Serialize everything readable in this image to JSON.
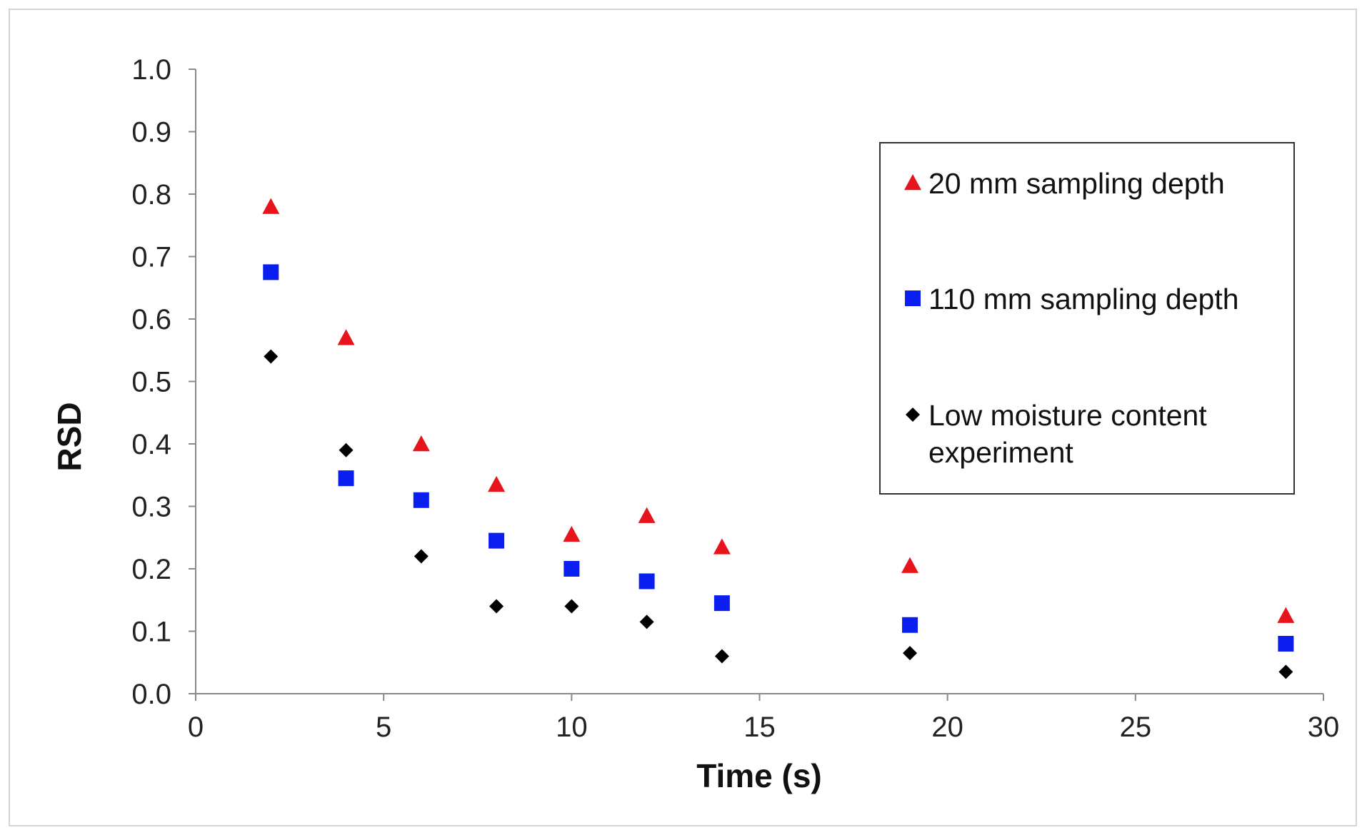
{
  "chart_data": {
    "type": "scatter",
    "xlabel": "Time (s)",
    "ylabel": "RSD",
    "xlim": [
      0,
      30
    ],
    "ylim": [
      0.0,
      1.0
    ],
    "x_ticks": [
      "0",
      "5",
      "10",
      "15",
      "20",
      "25",
      "30"
    ],
    "y_ticks": [
      "0.0",
      "0.1",
      "0.2",
      "0.3",
      "0.4",
      "0.5",
      "0.6",
      "0.7",
      "0.8",
      "0.9",
      "1.0"
    ],
    "grid": false,
    "legend_position": "right",
    "series": [
      {
        "name": "20 mm sampling depth",
        "marker": "triangle",
        "color": "#e8141b",
        "x": [
          2,
          4,
          6,
          8,
          10,
          12,
          14,
          19,
          29
        ],
        "y": [
          0.78,
          0.57,
          0.4,
          0.335,
          0.255,
          0.285,
          0.235,
          0.205,
          0.125
        ]
      },
      {
        "name": "110 mm sampling depth",
        "marker": "square",
        "color": "#0a1ef0",
        "x": [
          2,
          4,
          6,
          8,
          10,
          12,
          14,
          19,
          29
        ],
        "y": [
          0.675,
          0.345,
          0.31,
          0.245,
          0.2,
          0.18,
          0.145,
          0.11,
          0.08
        ]
      },
      {
        "name": "Low moisture content experiment",
        "name_lines": [
          "Low moisture content",
          "experiment"
        ],
        "marker": "diamond",
        "color": "#000000",
        "x": [
          2,
          4,
          6,
          8,
          10,
          12,
          14,
          19,
          29
        ],
        "y": [
          0.54,
          0.39,
          0.22,
          0.14,
          0.14,
          0.115,
          0.06,
          0.065,
          0.035
        ]
      }
    ]
  }
}
